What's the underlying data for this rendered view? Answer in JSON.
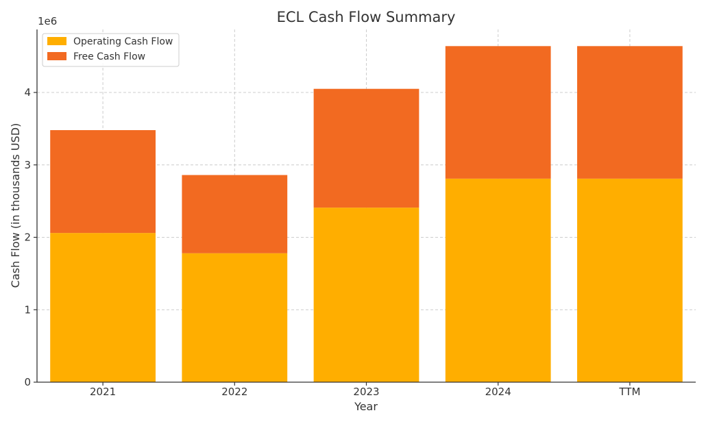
{
  "chart_data": {
    "type": "bar",
    "stacked": true,
    "title": "ECL Cash Flow Summary",
    "xlabel": "Year",
    "ylabel": "Cash Flow (in thousands USD)",
    "y_offset_text": "1e6",
    "y_scale_factor": 1000000,
    "categories": [
      "2021",
      "2022",
      "2023",
      "2024",
      "TTM"
    ],
    "series": [
      {
        "name": "Operating Cash Flow",
        "color": "#FFAE00",
        "values": [
          2060000,
          1780000,
          2410000,
          2810000,
          2810000
        ]
      },
      {
        "name": "Free Cash Flow",
        "color": "#F26A21",
        "values": [
          1420000,
          1080000,
          1640000,
          1830000,
          1830000
        ]
      }
    ],
    "ylim": [
      0,
      4870000
    ],
    "yticks": [
      0,
      1000000,
      2000000,
      3000000,
      4000000
    ],
    "ytick_labels": [
      "0",
      "1",
      "2",
      "3",
      "4"
    ],
    "grid": true,
    "legend_position": "upper-left"
  }
}
